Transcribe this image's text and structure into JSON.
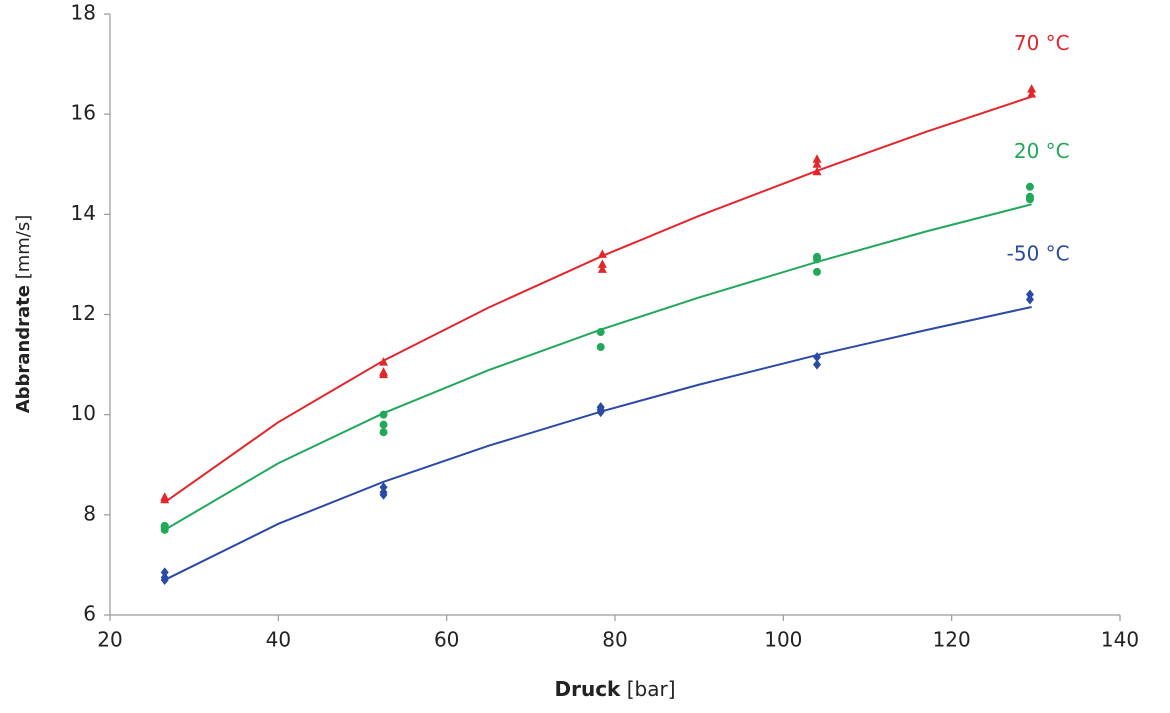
{
  "chart_data": {
    "type": "scatter",
    "x_label": {
      "bold": "Druck",
      "unit": "[bar]"
    },
    "y_label": {
      "bold": "Abbrandrate",
      "unit": "[mm/s]"
    },
    "xlim": [
      20,
      140
    ],
    "xticks": [
      20,
      40,
      60,
      80,
      100,
      120,
      140
    ],
    "ylim": [
      6,
      18
    ],
    "yticks": [
      6,
      8,
      10,
      12,
      14,
      16,
      18
    ],
    "grid": false,
    "series": [
      {
        "name": "70 °C",
        "color": "#e3262b",
        "marker": "triangle",
        "x": [
          26.5,
          26.5,
          52.5,
          52.5,
          52.5,
          78.5,
          78.5,
          78.5,
          104,
          104,
          104,
          129.5,
          129.5
        ],
        "values": [
          8.3,
          8.35,
          10.8,
          10.85,
          11.05,
          12.9,
          13.0,
          13.2,
          14.85,
          15.0,
          15.1,
          16.4,
          16.5
        ],
        "fit": {
          "x": [
            26.5,
            40,
            52.5,
            65,
            78.5,
            90,
            104,
            117,
            129.5
          ],
          "values": [
            8.25,
            9.85,
            11.08,
            12.14,
            13.17,
            13.97,
            14.87,
            15.65,
            16.35
          ]
        }
      },
      {
        "name": "20 °C",
        "color": "#22a85a",
        "marker": "circle",
        "x": [
          26.5,
          26.5,
          26.5,
          52.5,
          52.5,
          52.5,
          78.3,
          78.3,
          104,
          104,
          104,
          129.3,
          129.3,
          129.3
        ],
        "values": [
          7.7,
          7.75,
          7.78,
          9.65,
          9.8,
          10.0,
          11.35,
          11.65,
          12.85,
          13.1,
          13.15,
          14.3,
          14.35,
          14.55
        ],
        "fit": {
          "x": [
            26.5,
            40,
            52.5,
            65,
            78.5,
            90,
            104,
            117,
            129.5
          ],
          "values": [
            7.7,
            9.03,
            10.03,
            10.89,
            11.71,
            12.34,
            13.05,
            13.66,
            14.2
          ]
        }
      },
      {
        "name": "-50 °C",
        "color": "#2a4aa6",
        "marker": "diamond",
        "x": [
          26.5,
          26.5,
          26.5,
          52.5,
          52.5,
          52.5,
          78.3,
          78.3,
          78.3,
          104,
          104,
          129.3,
          129.3
        ],
        "values": [
          6.7,
          6.75,
          6.85,
          8.4,
          8.45,
          8.55,
          10.05,
          10.1,
          10.15,
          11.0,
          11.15,
          12.3,
          12.4
        ],
        "fit": {
          "x": [
            26.5,
            40,
            52.5,
            65,
            78.5,
            90,
            104,
            117,
            129.5
          ],
          "values": [
            6.7,
            7.82,
            8.66,
            9.38,
            10.07,
            10.6,
            11.19,
            11.69,
            12.15
          ]
        }
      }
    ]
  }
}
